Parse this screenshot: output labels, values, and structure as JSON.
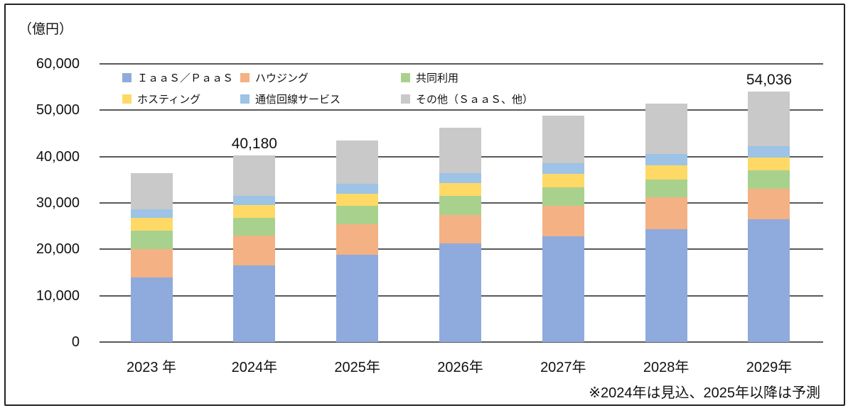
{
  "chart_data": {
    "type": "bar",
    "stacked": true,
    "title": "",
    "ylabel": "（億円）",
    "xlabel": "",
    "ylim": [
      0,
      60000
    ],
    "grid": true,
    "legend_position": "top-inside",
    "y_ticks": [
      "60,000",
      "50,000",
      "40,000",
      "30,000",
      "20,000",
      "10,000",
      "0"
    ],
    "categories": [
      "2023 年",
      "2024年",
      "2025年",
      "2026年",
      "2027年",
      "2028年",
      "2029年"
    ],
    "series": [
      {
        "name": "ＩａａＳ／ＰａａＳ",
        "color": "#8FAADC",
        "values": [
          14000,
          16600,
          18900,
          21200,
          22800,
          24400,
          26450
        ]
      },
      {
        "name": "ハウジング",
        "color": "#F4B183",
        "values": [
          6100,
          6400,
          6500,
          6200,
          6550,
          6890,
          6630
        ]
      },
      {
        "name": "共同利用",
        "color": "#A9D18E",
        "values": [
          4000,
          3800,
          3950,
          4100,
          3980,
          3730,
          3980
        ]
      },
      {
        "name": "ホスティング",
        "color": "#FFD966",
        "values": [
          2700,
          2800,
          2650,
          2850,
          2910,
          3060,
          2740
        ]
      },
      {
        "name": "通信回線サービス",
        "color": "#9DC3E6",
        "values": [
          1800,
          1950,
          2100,
          2150,
          2300,
          2500,
          2470
        ]
      },
      {
        "name": "その他（ＳａａＳ、他）",
        "color": "#C9C9C9",
        "values": [
          7900,
          8630,
          9300,
          9700,
          10310,
          10870,
          11766
        ]
      }
    ],
    "totals": [
      36500,
      40180,
      43400,
      46200,
      48850,
      51450,
      54036
    ],
    "data_labels": [
      {
        "category": "2024年",
        "text": "40,180"
      },
      {
        "category": "2029年",
        "text": "54,036"
      }
    ],
    "note": "※2024年は見込、2025年以降は予測",
    "colors": {
      "gridline": "#595959",
      "text": "#111111",
      "border": "#222222"
    }
  }
}
